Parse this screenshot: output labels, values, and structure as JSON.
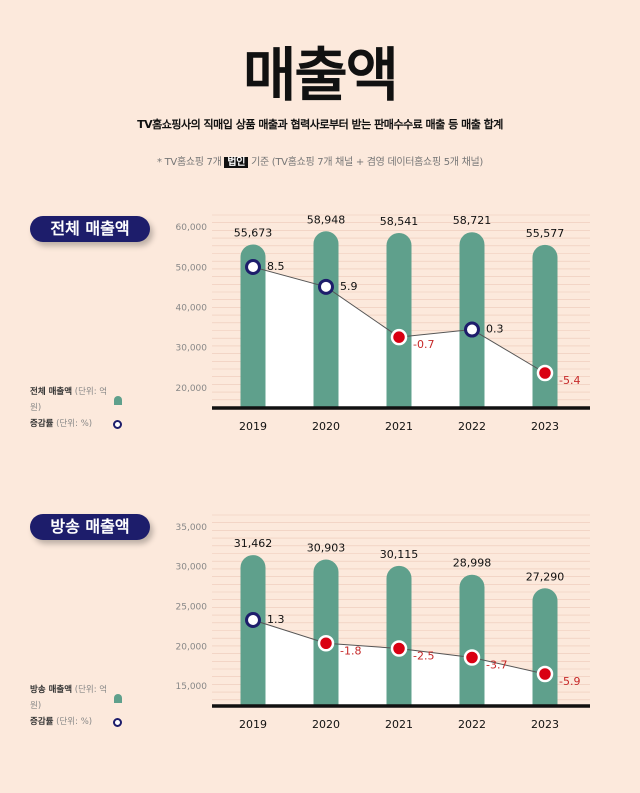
{
  "header": {
    "title": "매출액",
    "subtitle": "TV홈쇼핑사의 직매입 상품 매출과 협력사로부터 받는 판매수수료 매출 등 매출 합계",
    "note_pre": "* TV홈쇼핑 7개",
    "note_hl": "법인",
    "note_post": "기준 (TV홈쇼핑 7개 채널 + 겸영 데이터홈쇼핑 5개 채널)"
  },
  "colors": {
    "bar": "#5fa08c",
    "positive_marker": "#1d1d6b",
    "negative_marker": "#d90012",
    "negative_text": "#c62828",
    "badge": "#1d1d6b"
  },
  "chart_data": [
    {
      "type": "bar+line",
      "title": "전체 매출액",
      "legend": [
        {
          "label": "전체 매출액",
          "unit": "(단위: 억 원)",
          "marker": "bar"
        },
        {
          "label": "증감률",
          "unit": "(단위: %)",
          "marker": "circle"
        }
      ],
      "legend_placement": "bottom-left",
      "categories": [
        "2019",
        "2020",
        "2021",
        "2022",
        "2023"
      ],
      "values": [
        55673,
        58948,
        58541,
        58721,
        55577
      ],
      "value_labels": [
        "55,673",
        "58,948",
        "58,541",
        "58,721",
        "55,577"
      ],
      "rates": [
        8.5,
        5.9,
        -0.7,
        0.3,
        -5.4
      ],
      "rate_labels": [
        "8.5",
        "5.9",
        "-0.7",
        "0.3",
        "-5.4"
      ],
      "yticks": [
        "60,000",
        "50,000",
        "40,000",
        "30,000",
        "20,000"
      ],
      "ytick_values": [
        60000,
        50000,
        40000,
        30000,
        20000
      ],
      "ylim": [
        15000,
        63000
      ],
      "grid": true
    },
    {
      "type": "bar+line",
      "title": "방송 매출액",
      "legend": [
        {
          "label": "방송 매출액",
          "unit": "(단위: 억 원)",
          "marker": "bar"
        },
        {
          "label": "증감률",
          "unit": "(단위: %)",
          "marker": "circle"
        }
      ],
      "legend_placement": "bottom-left",
      "categories": [
        "2019",
        "2020",
        "2021",
        "2022",
        "2023"
      ],
      "values": [
        31462,
        30903,
        30115,
        28998,
        27290
      ],
      "value_labels": [
        "31,462",
        "30,903",
        "30,115",
        "28,998",
        "27,290"
      ],
      "rates": [
        1.3,
        -1.8,
        -2.5,
        -3.7,
        -5.9
      ],
      "rate_labels": [
        "1.3",
        "-1.8",
        "-2.5",
        "-3.7",
        "-5.9"
      ],
      "yticks": [
        "35,000",
        "30,000",
        "25,000",
        "20,000",
        "15,000"
      ],
      "ytick_values": [
        35000,
        30000,
        25000,
        20000,
        15000
      ],
      "ylim": [
        12500,
        36500
      ],
      "grid": true
    }
  ]
}
